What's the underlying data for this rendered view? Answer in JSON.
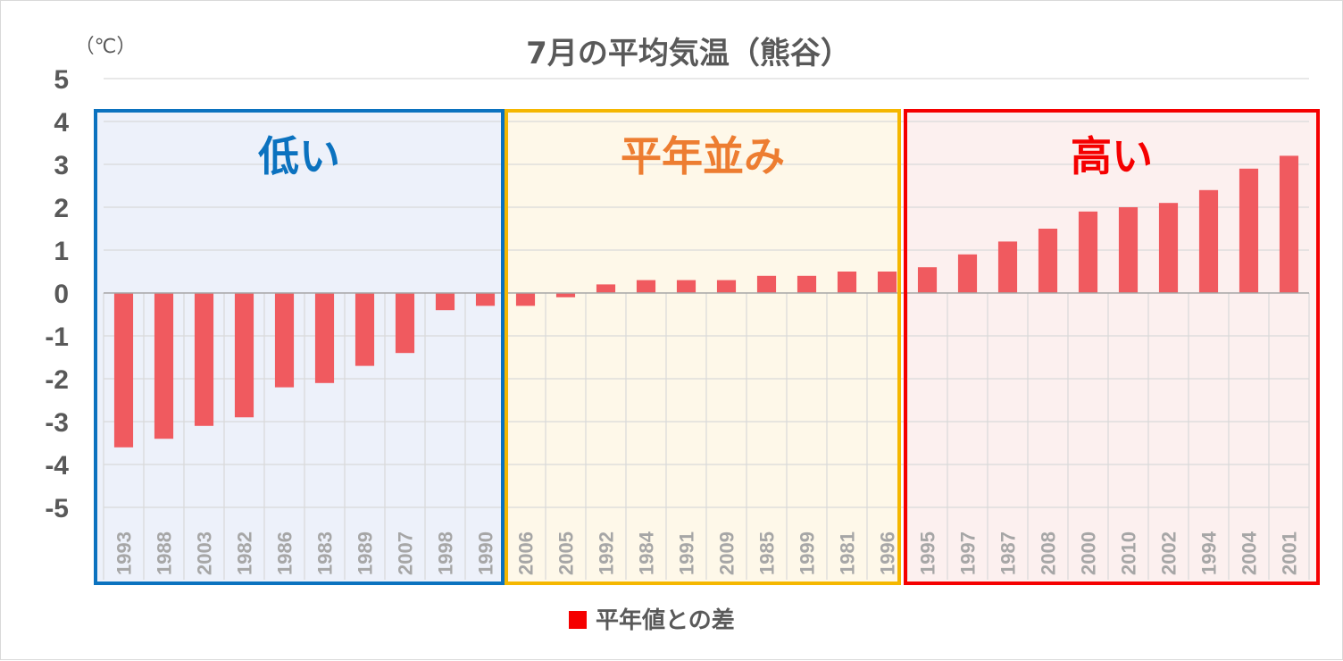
{
  "chart_data": {
    "type": "bar",
    "title": "7月の平均気温（熊谷）",
    "unit_label": "（℃）",
    "ylim": [
      -5,
      5
    ],
    "y_ticks": [
      "5",
      "4",
      "3",
      "2",
      "1",
      "0",
      "-1",
      "-2",
      "-3",
      "-4",
      "-5"
    ],
    "categories": [
      "1993",
      "1988",
      "2003",
      "1982",
      "1986",
      "1983",
      "1989",
      "2007",
      "1998",
      "1990",
      "2006",
      "2005",
      "1992",
      "1984",
      "1991",
      "2009",
      "1985",
      "1999",
      "1981",
      "1996",
      "1995",
      "1997",
      "1987",
      "2008",
      "2000",
      "2010",
      "2002",
      "1994",
      "2004",
      "2001"
    ],
    "series": [
      {
        "name": "平年値との差",
        "color": "#f05a5f",
        "values": [
          -3.6,
          -3.4,
          -3.1,
          -2.9,
          -2.2,
          -2.1,
          -1.7,
          -1.4,
          -0.4,
          -0.3,
          -0.3,
          -0.1,
          0.2,
          0.3,
          0.3,
          0.3,
          0.4,
          0.4,
          0.5,
          0.5,
          0.6,
          0.9,
          1.2,
          1.5,
          1.9,
          2.0,
          2.1,
          2.4,
          2.9,
          3.2
        ]
      }
    ],
    "regions": [
      {
        "label": "低い",
        "from": 0,
        "to": 9,
        "border": "#0b72bf",
        "fill": "#edf1fa",
        "text_color": "#0b72bf"
      },
      {
        "label": "平年並み",
        "from": 10,
        "to": 19,
        "border": "#f5b700",
        "fill": "#fef8e9",
        "text_color": "#ed7d31"
      },
      {
        "label": "高い",
        "from": 20,
        "to": 29,
        "border": "#f50000",
        "fill": "#fcf0ef",
        "text_color": "#f50000"
      }
    ],
    "grid": true,
    "legend": {
      "position": "bottom",
      "label": "平年値との差",
      "marker_color": "#f50000"
    }
  }
}
